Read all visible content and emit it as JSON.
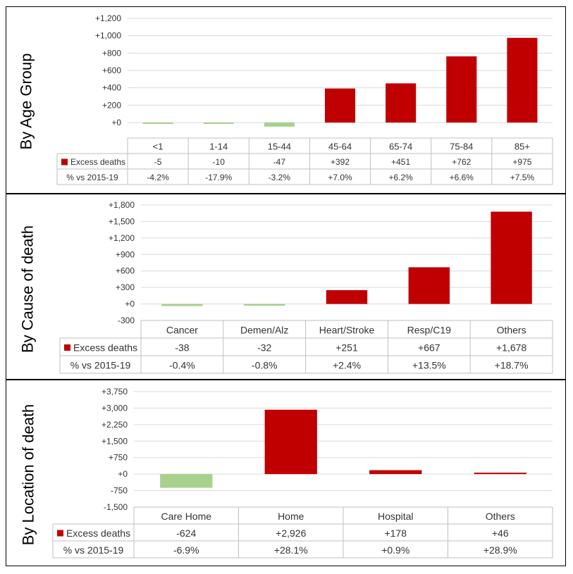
{
  "colors": {
    "positive": "#c00000",
    "negative": "#a9d18e",
    "grid": "#d9d9d9",
    "table_border": "#bfbfbf"
  },
  "chart_data": [
    {
      "type": "bar",
      "panel_label": "By Age Group",
      "categories": [
        "<1",
        "1-14",
        "15-44",
        "45-64",
        "65-74",
        "75-84",
        "85+"
      ],
      "series": [
        {
          "name": "Excess deaths",
          "values": [
            -5,
            -10,
            -47,
            392,
            451,
            762,
            975
          ]
        }
      ],
      "table_rows": [
        {
          "label": "Excess deaths",
          "values": [
            "-5",
            "-10",
            "-47",
            "+392",
            "+451",
            "+762",
            "+975"
          ]
        },
        {
          "label": "% vs 2015-19",
          "values": [
            "-4.2%",
            "-17.9%",
            "-3.2%",
            "+7.0%",
            "+6.2%",
            "+6.6%",
            "+7.5%"
          ]
        }
      ],
      "ylim": [
        0,
        1200
      ],
      "yticks": [
        0,
        200,
        400,
        600,
        800,
        1000,
        1200
      ],
      "ytick_labels": [
        "+0",
        "+200",
        "+400",
        "+600",
        "+800",
        "+1,000",
        "+1,200"
      ],
      "grid": true
    },
    {
      "type": "bar",
      "panel_label": "By Cause of death",
      "categories": [
        "Cancer",
        "Demen/Alz",
        "Heart/Stroke",
        "Resp/C19",
        "Others"
      ],
      "series": [
        {
          "name": "Excess deaths",
          "values": [
            -38,
            -32,
            251,
            667,
            1678
          ]
        }
      ],
      "table_rows": [
        {
          "label": "Excess deaths",
          "values": [
            "-38",
            "-32",
            "+251",
            "+667",
            "+1,678"
          ]
        },
        {
          "label": "% vs 2015-19",
          "values": [
            "-0.4%",
            "-0.8%",
            "+2.4%",
            "+13.5%",
            "+18.7%"
          ]
        }
      ],
      "ylim": [
        -300,
        1800
      ],
      "yticks": [
        -300,
        0,
        300,
        600,
        900,
        1200,
        1500,
        1800
      ],
      "ytick_labels": [
        "-300",
        "+0",
        "+300",
        "+600",
        "+900",
        "+1,200",
        "+1,500",
        "+1,800"
      ],
      "grid": true
    },
    {
      "type": "bar",
      "panel_label": "By Location of death",
      "categories": [
        "Care Home",
        "Home",
        "Hospital",
        "Others"
      ],
      "series": [
        {
          "name": "Excess deaths",
          "values": [
            -624,
            2926,
            178,
            46
          ]
        }
      ],
      "table_rows": [
        {
          "label": "Excess deaths",
          "values": [
            "-624",
            "+2,926",
            "+178",
            "+46"
          ]
        },
        {
          "label": "% vs 2015-19",
          "values": [
            "-6.9%",
            "+28.1%",
            "+0.9%",
            "+28.9%"
          ]
        }
      ],
      "ylim": [
        -1500,
        3750
      ],
      "yticks": [
        -1500,
        -750,
        0,
        750,
        1500,
        2250,
        3000,
        3750
      ],
      "ytick_labels": [
        "-1,500",
        "-750",
        "+0",
        "+750",
        "+1,500",
        "+2,250",
        "+3,000",
        "+3,750"
      ],
      "grid": true
    }
  ]
}
